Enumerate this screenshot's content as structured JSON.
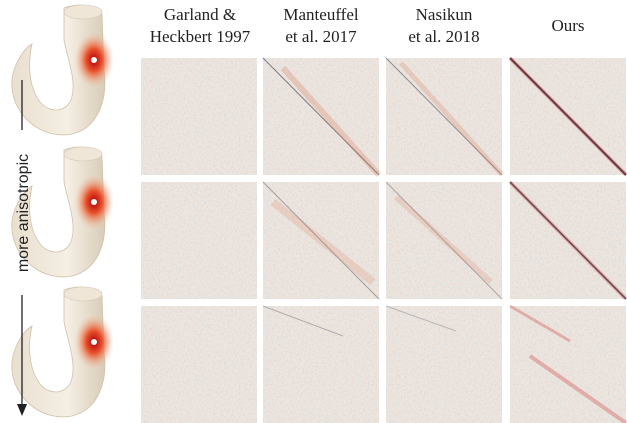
{
  "column_headers": [
    [
      "Garland &",
      "Heckbert 1997"
    ],
    [
      "Manteuffel",
      "et al. 2017"
    ],
    [
      "Nasikun",
      "et al. 2018"
    ],
    [
      "Ours"
    ]
  ],
  "side_label": "more anisotropic"
}
